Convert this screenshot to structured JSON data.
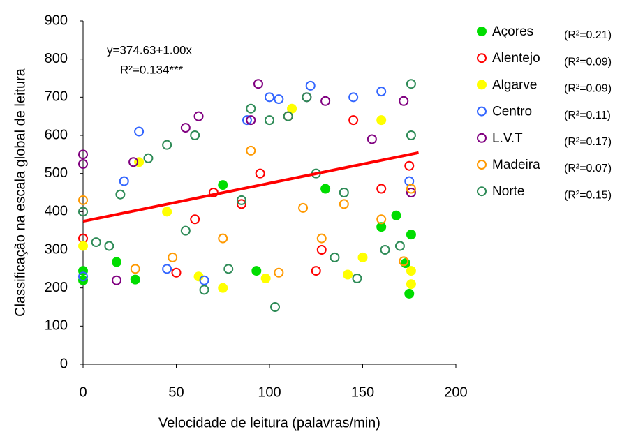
{
  "chart_data": {
    "type": "scatter",
    "xlabel": "Velocidade de leitura (palavras/min)",
    "ylabel": "Classificação na escala global de leitura",
    "xlim": [
      0,
      200
    ],
    "ylim": [
      0,
      900
    ],
    "xticks": [
      0,
      50,
      100,
      150,
      200
    ],
    "yticks": [
      0,
      100,
      200,
      300,
      400,
      500,
      600,
      700,
      800,
      900
    ],
    "annotations": [
      "y=374.63+1.00x",
      "R²=0.134***"
    ],
    "trendline": {
      "color": "#ff0000",
      "x": [
        0,
        180
      ],
      "y": [
        374.63,
        554.63
      ]
    },
    "series": [
      {
        "name": "Açores",
        "r2_label": "(R²=0.21)",
        "color": "#00dd00",
        "filled": true,
        "x": [
          0,
          0,
          18,
          28,
          75,
          93,
          130,
          160,
          168,
          173,
          175,
          176
        ],
        "y": [
          220,
          245,
          268,
          222,
          470,
          245,
          460,
          360,
          390,
          265,
          185,
          340
        ]
      },
      {
        "name": "Alentejo",
        "r2_label": "(R²=0.09)",
        "color": "#ff0000",
        "filled": false,
        "x": [
          0,
          50,
          70,
          95,
          110,
          125,
          128,
          145,
          160,
          175,
          60,
          85
        ],
        "y": [
          330,
          240,
          450,
          500,
          650,
          245,
          300,
          640,
          460,
          520,
          380,
          420
        ]
      },
      {
        "name": "Algarve",
        "r2_label": "(R²=0.09)",
        "color": "#ffff00",
        "filled": true,
        "x": [
          0,
          30,
          45,
          62,
          75,
          98,
          112,
          142,
          150,
          160,
          176,
          176
        ],
        "y": [
          310,
          530,
          400,
          230,
          200,
          225,
          670,
          235,
          280,
          640,
          245,
          210
        ]
      },
      {
        "name": "Centro",
        "r2_label": "(R²=0.11)",
        "color": "#3366ff",
        "filled": false,
        "x": [
          0,
          22,
          30,
          45,
          65,
          88,
          100,
          105,
          122,
          145,
          160,
          175
        ],
        "y": [
          230,
          480,
          610,
          250,
          220,
          640,
          700,
          695,
          730,
          700,
          715,
          480
        ]
      },
      {
        "name": "L.V.T",
        "r2_label": "(R²=0.17)",
        "color": "#800080",
        "filled": false,
        "x": [
          0,
          0,
          18,
          27,
          55,
          62,
          90,
          94,
          120,
          130,
          155,
          172,
          176
        ],
        "y": [
          550,
          525,
          220,
          530,
          620,
          650,
          640,
          735,
          700,
          690,
          590,
          690,
          450
        ]
      },
      {
        "name": "Madeira",
        "r2_label": "(R²=0.07)",
        "color": "#ff9900",
        "filled": false,
        "x": [
          0,
          28,
          48,
          75,
          90,
          105,
          118,
          128,
          140,
          160,
          172,
          176
        ],
        "y": [
          430,
          250,
          280,
          330,
          560,
          240,
          410,
          330,
          420,
          380,
          270,
          460
        ]
      },
      {
        "name": "Norte",
        "r2_label": "(R²=0.15)",
        "color": "#2e8b57",
        "filled": false,
        "x": [
          0,
          7,
          14,
          20,
          35,
          45,
          60,
          65,
          78,
          90,
          100,
          103,
          110,
          120,
          135,
          147,
          162,
          170,
          176,
          176,
          140,
          85,
          55,
          125
        ],
        "y": [
          400,
          320,
          310,
          445,
          540,
          575,
          600,
          195,
          250,
          670,
          640,
          150,
          650,
          700,
          280,
          225,
          300,
          310,
          735,
          600,
          450,
          430,
          350,
          500
        ]
      }
    ]
  }
}
